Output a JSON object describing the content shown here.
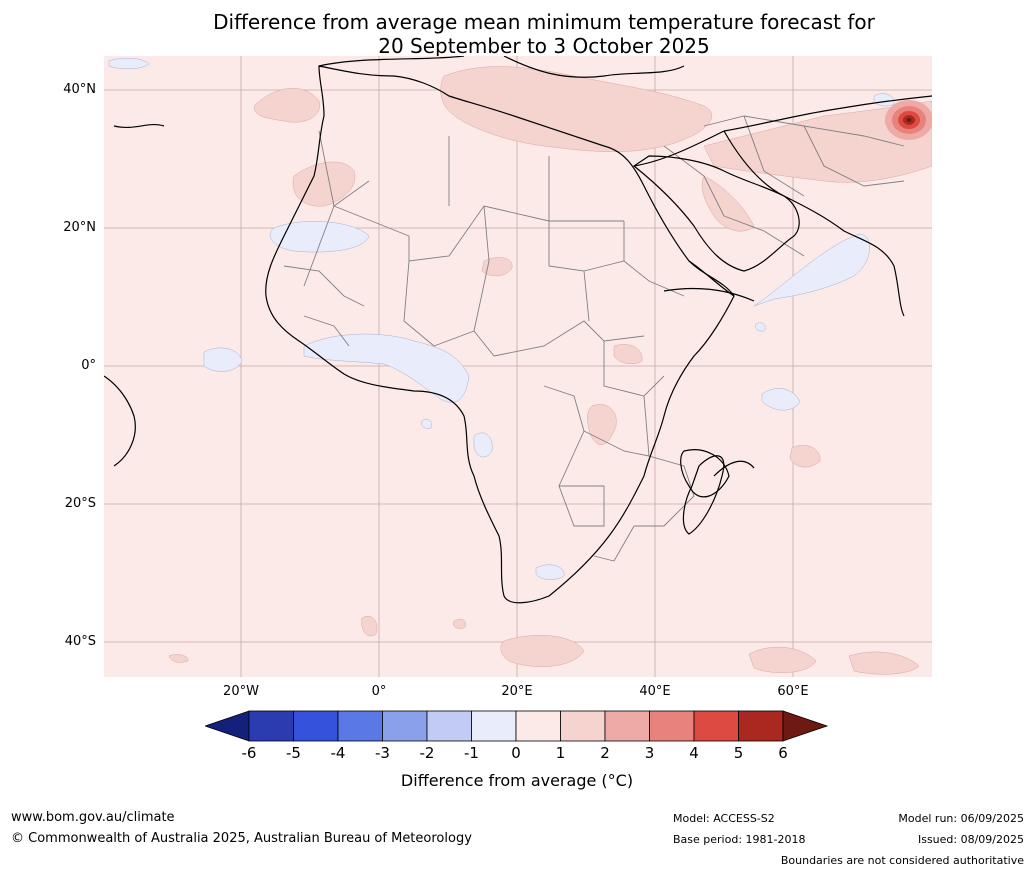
{
  "title": {
    "line1": "Difference from average mean minimum temperature forecast for",
    "line2": "20 September to 3 October 2025"
  },
  "map": {
    "lat_labels": [
      "40°N",
      "20°N",
      "0°",
      "20°S",
      "40°S"
    ],
    "lon_labels": [
      "20°W",
      "0°",
      "20°E",
      "40°E",
      "60°E"
    ],
    "background_color": "#fbeae8",
    "coast_color": "#000000",
    "border_color": "#808080"
  },
  "colorbar": {
    "ticks": [
      "-6",
      "-5",
      "-4",
      "-3",
      "-2",
      "-1",
      "0",
      "1",
      "2",
      "3",
      "4",
      "5",
      "6"
    ],
    "colors": [
      "#15207a",
      "#2a3cb0",
      "#3452dc",
      "#5a78e6",
      "#8aa0ea",
      "#c2cbf3",
      "#e8ecfb",
      "#fbeae8",
      "#f5d3cf",
      "#edaaa6",
      "#e8827c",
      "#dc4a42",
      "#aa2820",
      "#6e1a12"
    ],
    "label": "Difference from average (°C)"
  },
  "footer": {
    "url": "www.bom.gov.au/climate",
    "copyright": "© Commonwealth of Australia 2025, Australian Bureau of Meteorology",
    "model": "Model: ACCESS-S2",
    "base_period": "Base period: 1981-2018",
    "model_run": "Model run: 06/09/2025",
    "issued": "Issued: 08/09/2025",
    "disclaimer": "Boundaries are not considered authoritative"
  }
}
